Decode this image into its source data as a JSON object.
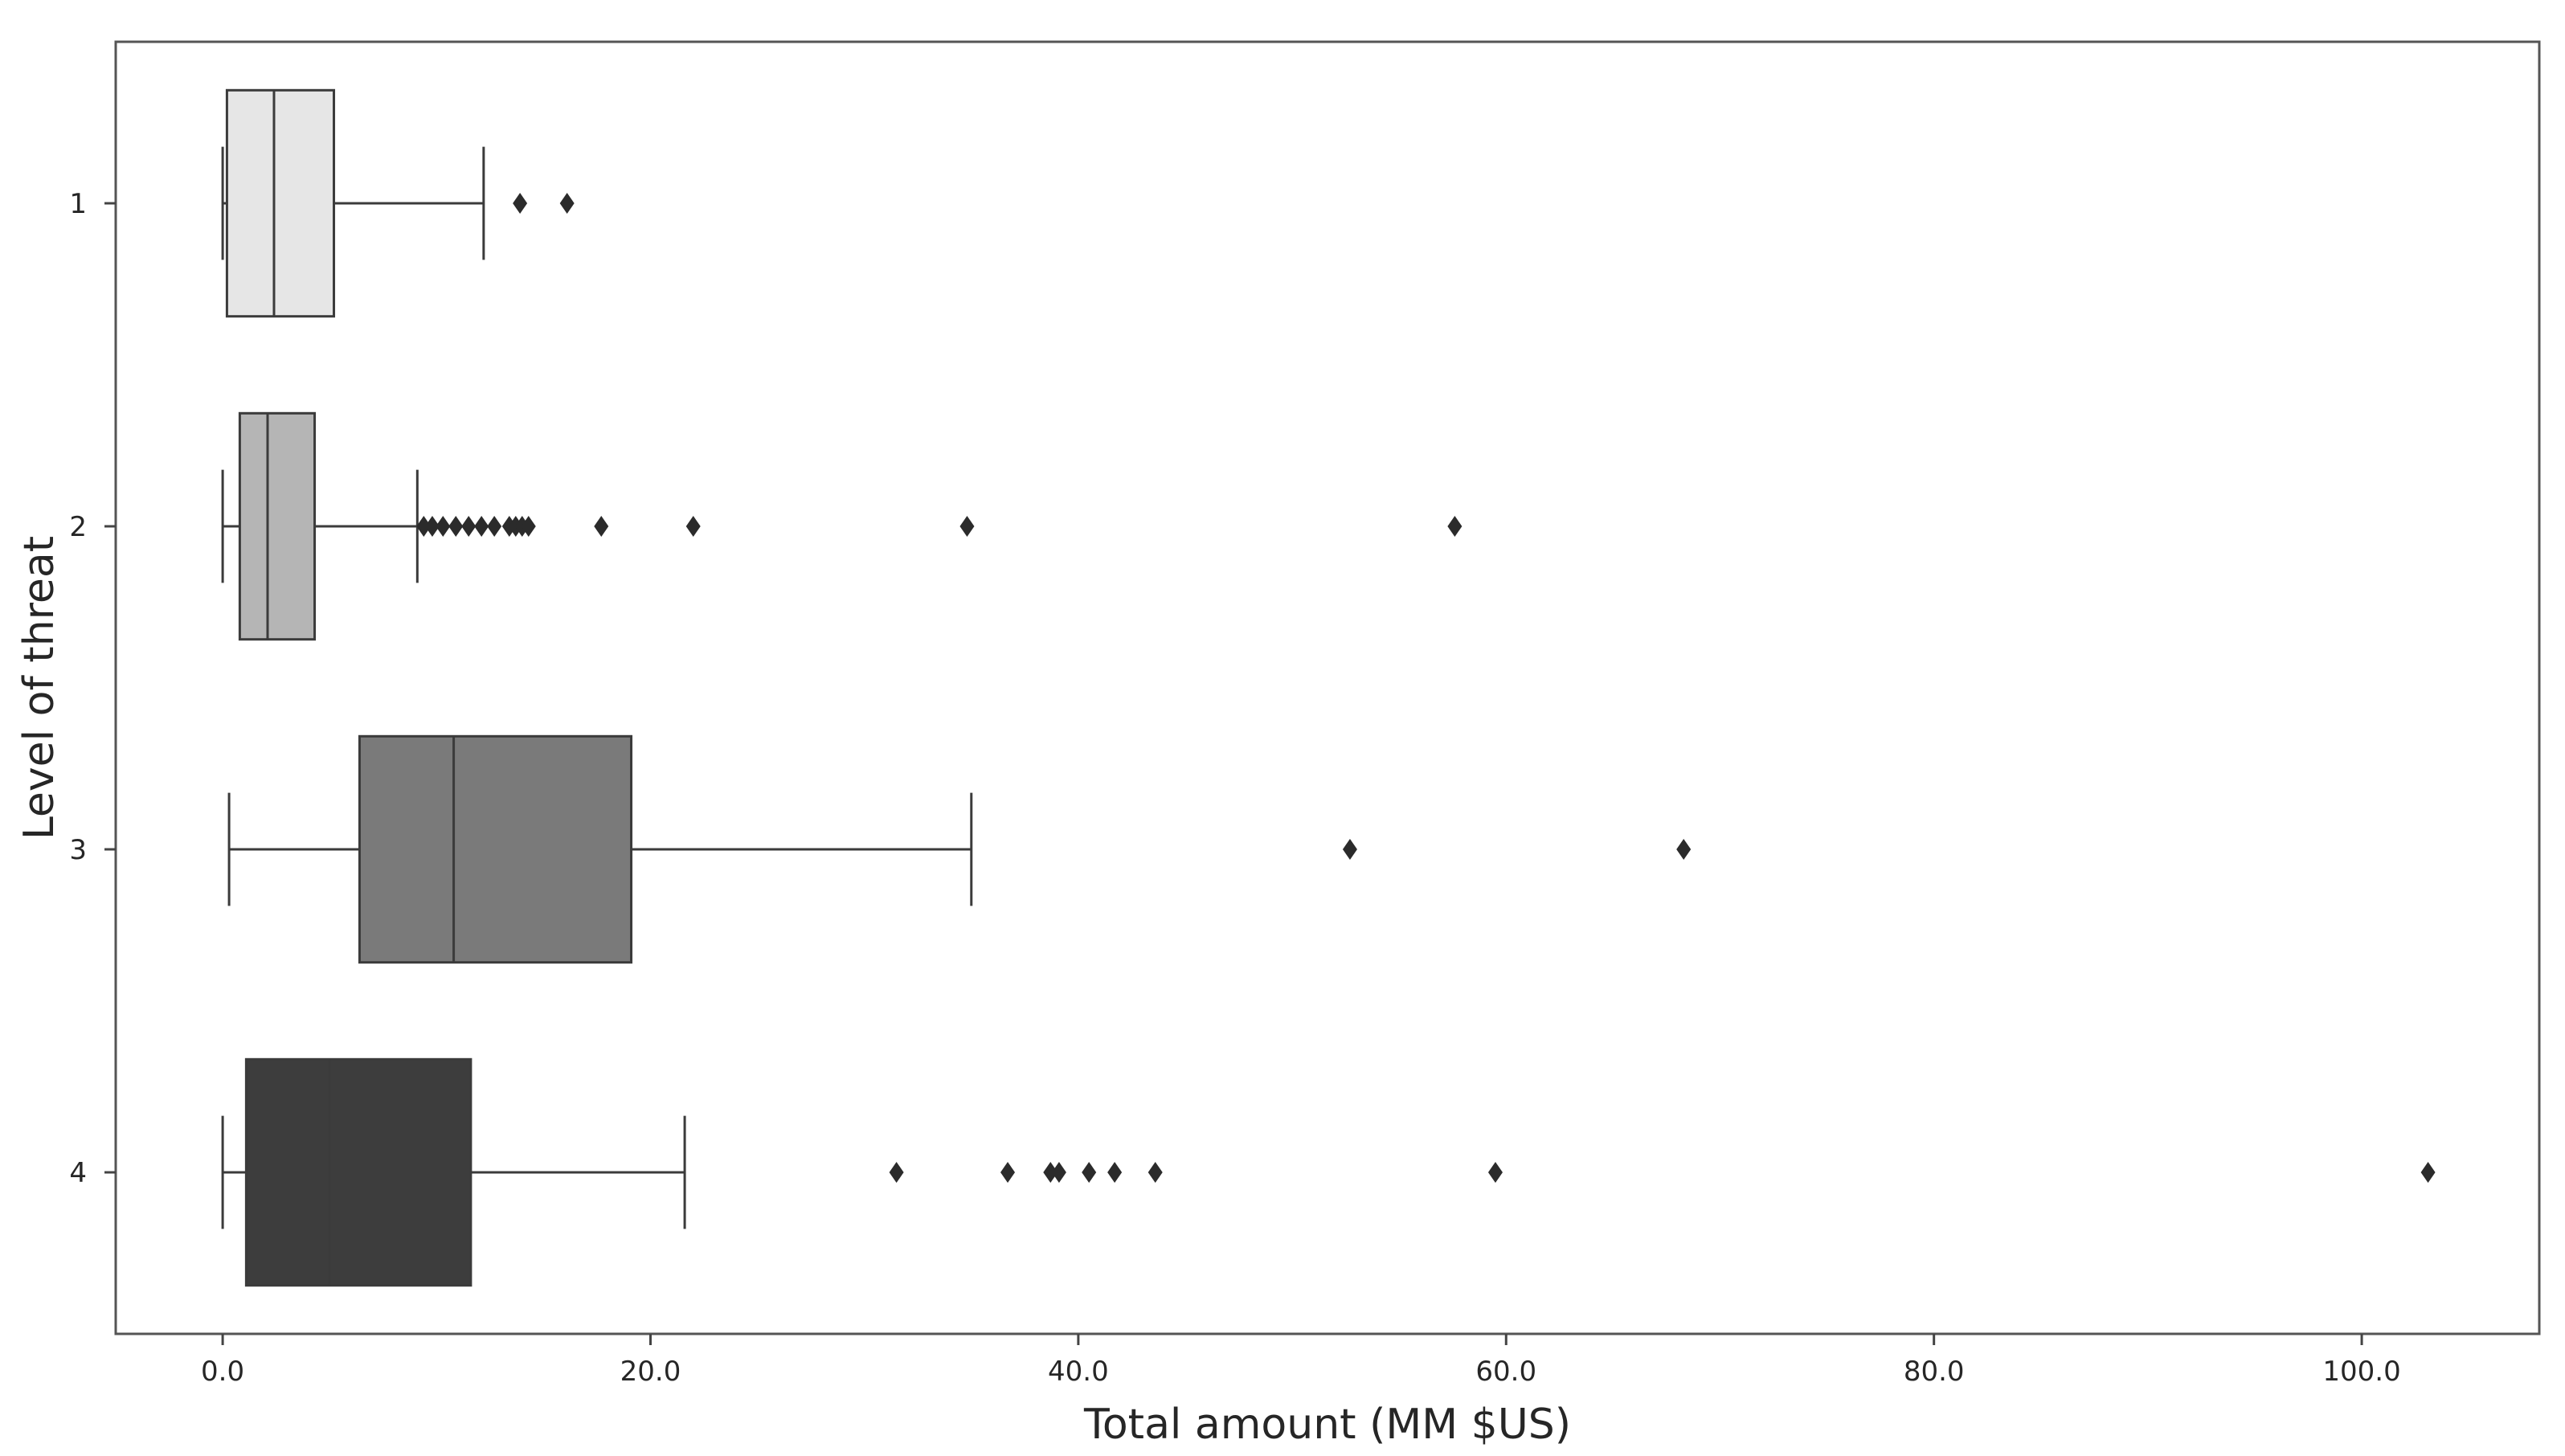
{
  "chart_data": {
    "type": "boxplot",
    "orientation": "horizontal",
    "title": "",
    "xlabel": "Total amount (MM $US)",
    "ylabel": "Level of threat",
    "xlim": [
      -5.0,
      108.3
    ],
    "xticks": [
      0,
      20,
      40,
      60,
      80,
      100
    ],
    "xtick_labels": [
      "0.0",
      "20.0",
      "40.0",
      "60.0",
      "80.0",
      "100.0"
    ],
    "categories": [
      "1",
      "2",
      "3",
      "4"
    ],
    "grid": false,
    "legend": "none",
    "series": [
      {
        "category": "1",
        "color": "#e6e6e6",
        "whisker_low": 0.0,
        "q1": 0.2,
        "median": 2.4,
        "q3": 5.2,
        "whisker_high": 12.2,
        "outliers": [
          13.9,
          16.1
        ]
      },
      {
        "category": "2",
        "color": "#b5b5b5",
        "whisker_low": 0.0,
        "q1": 0.8,
        "median": 2.1,
        "q3": 4.3,
        "whisker_high": 9.1,
        "outliers": [
          9.4,
          9.8,
          10.3,
          10.9,
          11.5,
          12.1,
          12.7,
          13.4,
          13.7,
          14.0,
          14.3,
          17.7,
          22.0,
          34.8,
          57.6
        ]
      },
      {
        "category": "3",
        "color": "#7a7a7a",
        "whisker_low": 0.3,
        "q1": 6.4,
        "median": 10.8,
        "q3": 19.1,
        "whisker_high": 35.0,
        "outliers": [
          52.7,
          68.3
        ]
      },
      {
        "category": "4",
        "color": "#3d3d3d",
        "whisker_low": 0.0,
        "q1": 1.1,
        "median": 5.0,
        "q3": 11.6,
        "whisker_high": 21.6,
        "outliers": [
          31.5,
          36.7,
          38.7,
          39.1,
          40.5,
          41.7,
          43.6,
          59.5,
          103.1
        ]
      }
    ]
  }
}
